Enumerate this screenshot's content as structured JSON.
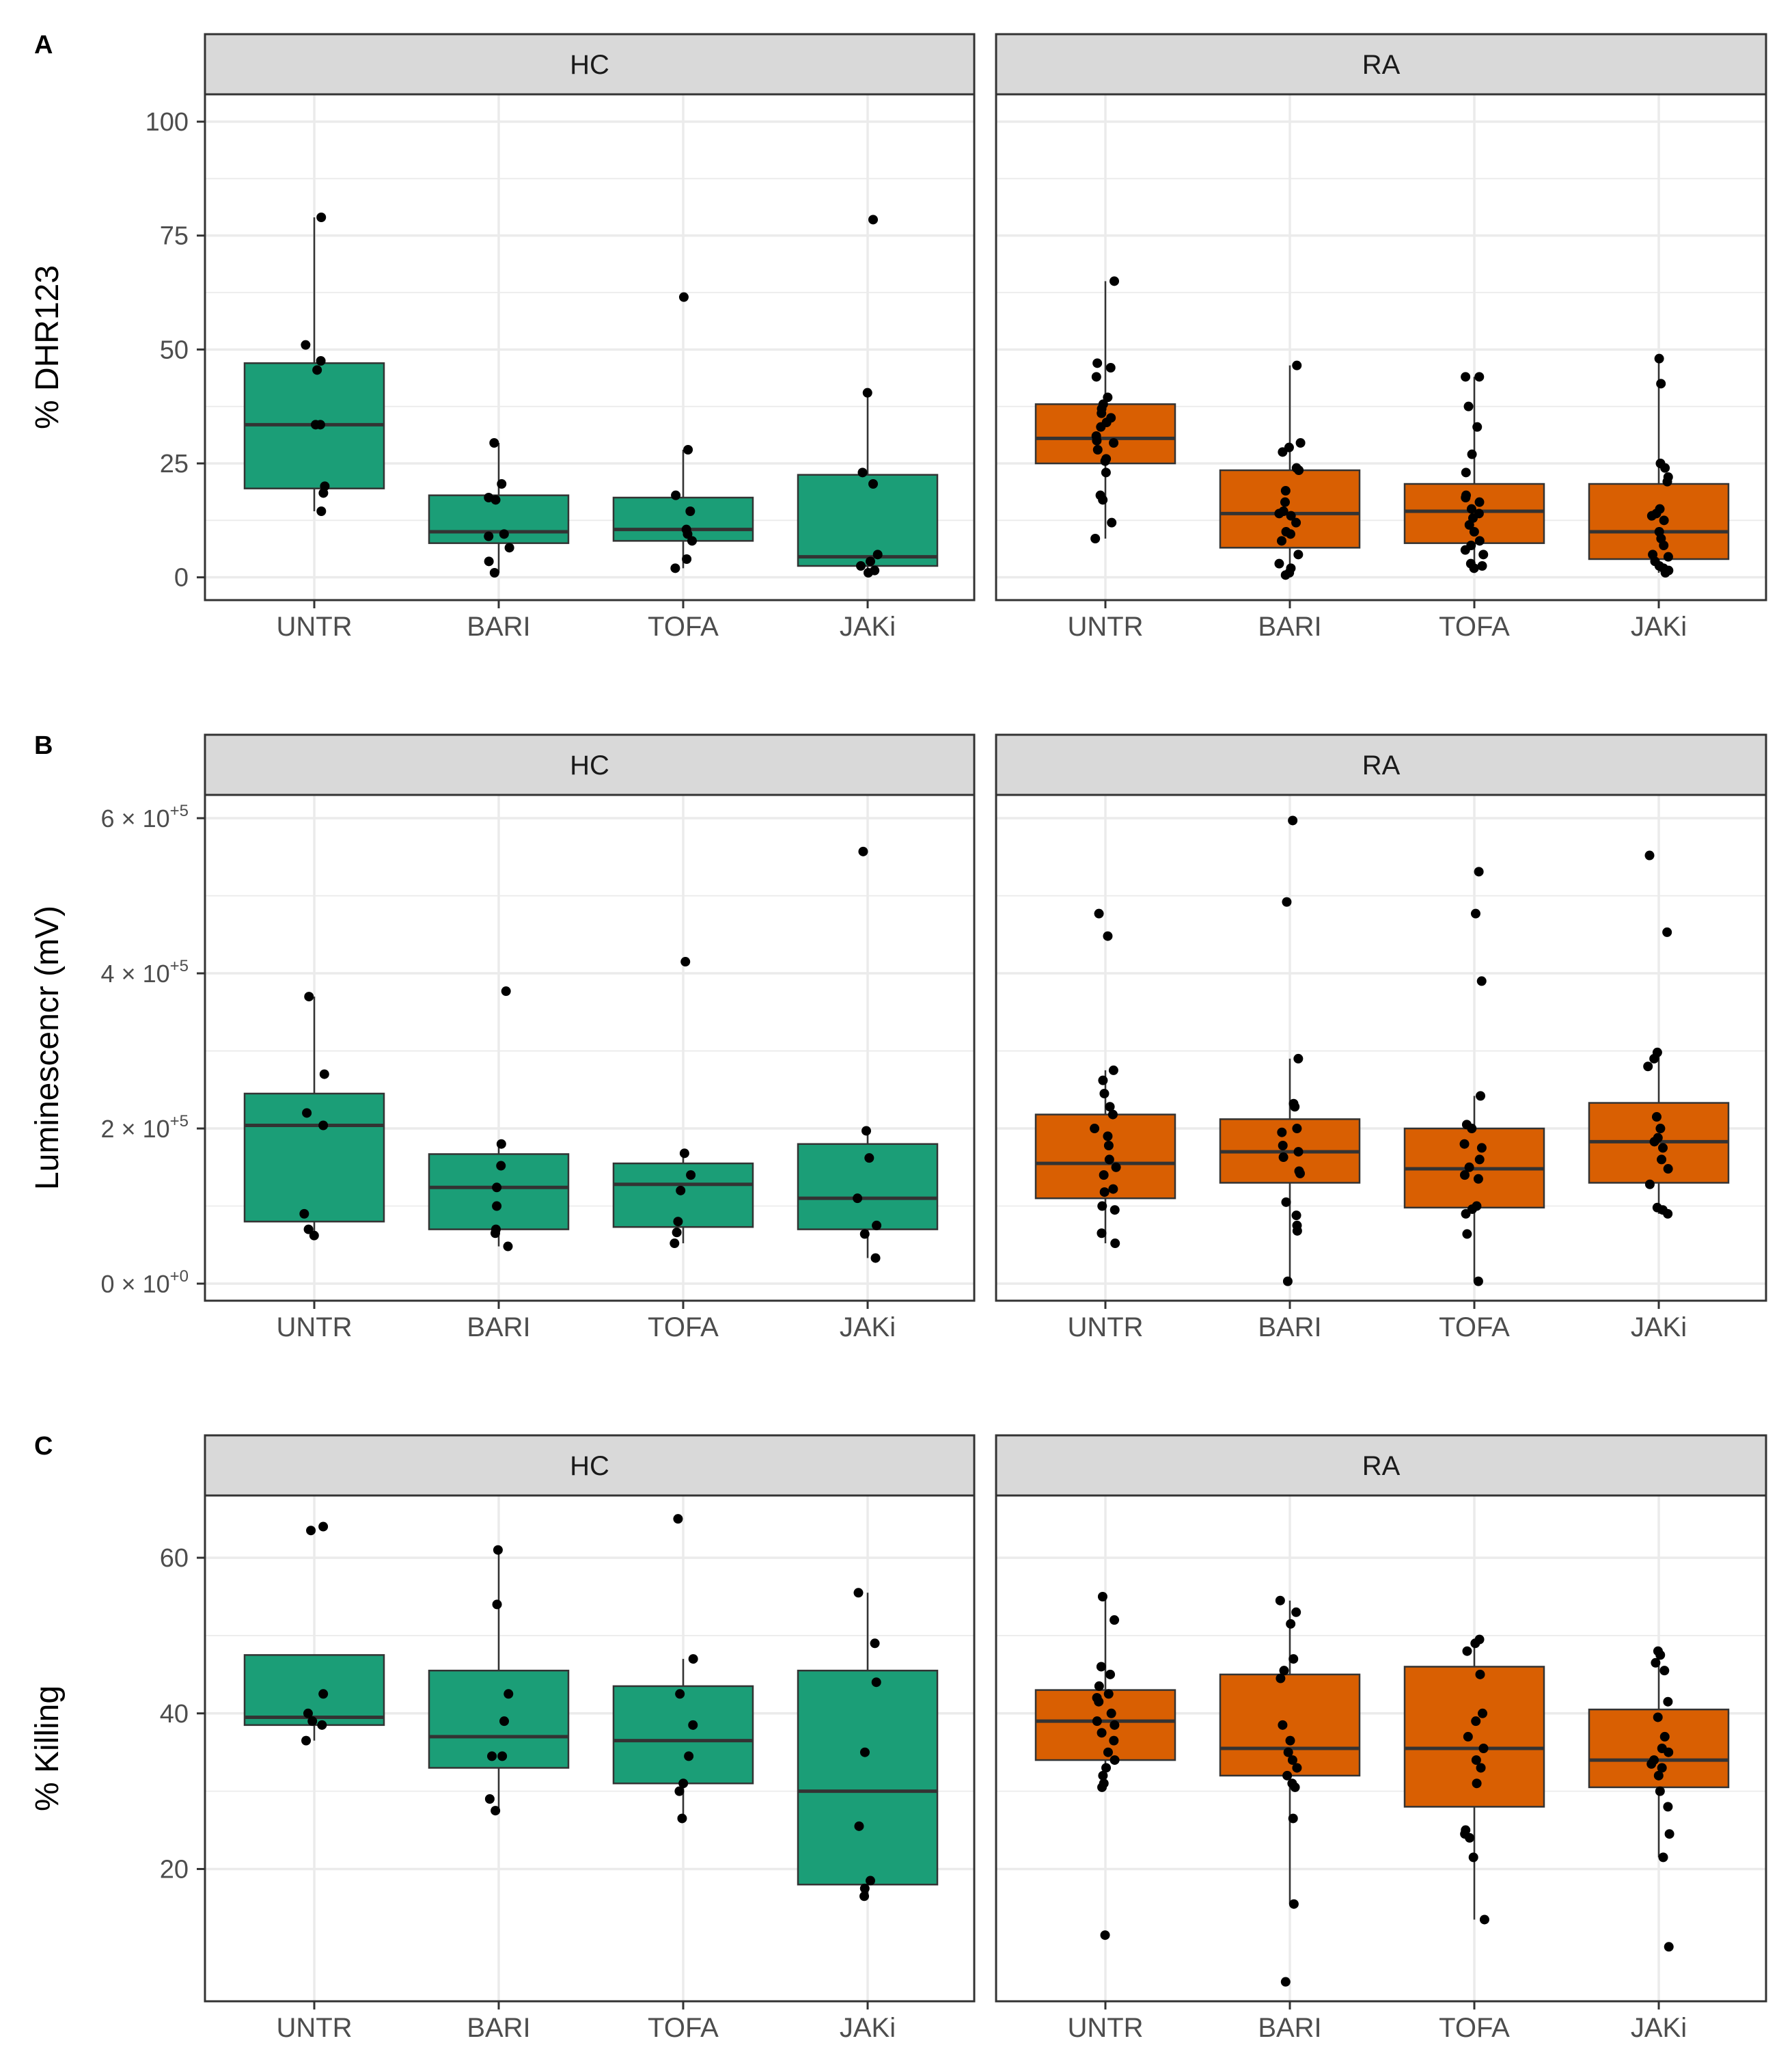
{
  "colors": {
    "hc_fill": "#1b9e77",
    "ra_fill": "#d95f02",
    "strip_bg": "#d9d9d9",
    "grid": "#ebebeb",
    "point": "#000000",
    "median": "#333333"
  },
  "chart_data": [
    {
      "type": "box",
      "panel_label": "A",
      "ylabel": "% DHR123",
      "ylim": [
        -5,
        106
      ],
      "yticks": [
        0,
        25,
        50,
        75,
        100
      ],
      "ytick_labels": [
        "0",
        "25",
        "50",
        "75",
        "100"
      ],
      "categories": [
        "UNTR",
        "BARI",
        "TOFA",
        "JAKi"
      ],
      "facets": [
        {
          "name": "HC",
          "fill_key": "hc_fill",
          "boxes": [
            {
              "q1": 19.5,
              "median": 33.5,
              "q3": 47.0,
              "wlo": 14.5,
              "whi": 79.0,
              "points": [
                79,
                51,
                47.5,
                45.5,
                33.5,
                33.5,
                20.0,
                18.5,
                14.5
              ]
            },
            {
              "q1": 7.5,
              "median": 10.0,
              "q3": 18.0,
              "wlo": 1.0,
              "whi": 29.5,
              "points": [
                29.5,
                20.5,
                17.5,
                17.0,
                9.5,
                9.0,
                6.5,
                3.5,
                1.0
              ]
            },
            {
              "q1": 8.0,
              "median": 10.5,
              "q3": 17.5,
              "wlo": 2.0,
              "whi": 28.0,
              "points": [
                61.5,
                28.0,
                18.0,
                14.5,
                10.5,
                9.5,
                8.0,
                4.0,
                2.0
              ]
            },
            {
              "q1": 2.5,
              "median": 4.5,
              "q3": 22.5,
              "wlo": 1.0,
              "whi": 40.5,
              "points": [
                78.5,
                40.5,
                23.0,
                20.5,
                5.0,
                3.5,
                2.5,
                1.5,
                1.0
              ]
            }
          ]
        },
        {
          "name": "RA",
          "fill_key": "ra_fill",
          "boxes": [
            {
              "q1": 25.0,
              "median": 30.5,
              "q3": 38.0,
              "wlo": 8.5,
              "whi": 65.0,
              "points": [
                65,
                47,
                46,
                44,
                39.5,
                38,
                37,
                36,
                35,
                34,
                33,
                31,
                30,
                29.5,
                28,
                26,
                25.5,
                23,
                18,
                17,
                12,
                8.5
              ]
            },
            {
              "q1": 6.5,
              "median": 14.0,
              "q3": 23.5,
              "wlo": 0.5,
              "whi": 46.5,
              "points": [
                46.5,
                29.5,
                28.5,
                27.5,
                24,
                23.5,
                19,
                16.5,
                14.5,
                14,
                13.5,
                12,
                10,
                9.5,
                8,
                5,
                3,
                2,
                1,
                0.5
              ]
            },
            {
              "q1": 7.5,
              "median": 14.5,
              "q3": 20.5,
              "wlo": 2.0,
              "whi": 44.0,
              "points": [
                44,
                44,
                37.5,
                33,
                27,
                23,
                18,
                17.5,
                16.5,
                15,
                14,
                13,
                11.5,
                10,
                8,
                7,
                6,
                5,
                3,
                2.5,
                2
              ]
            },
            {
              "q1": 4.0,
              "median": 10.0,
              "q3": 20.5,
              "wlo": 1.0,
              "whi": 48.0,
              "points": [
                48,
                42.5,
                25,
                24,
                22,
                21,
                15,
                14,
                13.5,
                12.5,
                10,
                8.5,
                7,
                5,
                4.5,
                3.5,
                2.5,
                2,
                1.5,
                1
              ]
            }
          ]
        }
      ]
    },
    {
      "type": "box",
      "panel_label": "B",
      "ylabel": "Luminescencr (mV)",
      "ylim": [
        -22000,
        630000
      ],
      "yticks": [
        0,
        200000,
        400000,
        600000
      ],
      "ytick_labels": [
        {
          "mant": "0",
          "exp": "+0"
        },
        {
          "mant": "2",
          "exp": "+5"
        },
        {
          "mant": "4",
          "exp": "+5"
        },
        {
          "mant": "6",
          "exp": "+5"
        }
      ],
      "ytick_joiner": " × 10",
      "categories": [
        "UNTR",
        "BARI",
        "TOFA",
        "JAKi"
      ],
      "facets": [
        {
          "name": "HC",
          "fill_key": "hc_fill",
          "boxes": [
            {
              "q1": 80000,
              "median": 204000,
              "q3": 245000,
              "wlo": 62000,
              "whi": 370000,
              "points": [
                370000,
                270000,
                220000,
                204000,
                90000,
                70000,
                62000
              ]
            },
            {
              "q1": 70000,
              "median": 124000,
              "q3": 167000,
              "wlo": 48000,
              "whi": 180000,
              "points": [
                377000,
                180000,
                152000,
                124000,
                100000,
                70000,
                65000,
                48000
              ]
            },
            {
              "q1": 73000,
              "median": 128000,
              "q3": 155000,
              "wlo": 52000,
              "whi": 168000,
              "points": [
                415000,
                168000,
                140000,
                120000,
                80000,
                66000,
                52000
              ]
            },
            {
              "q1": 70000,
              "median": 110000,
              "q3": 180000,
              "wlo": 33000,
              "whi": 197000,
              "points": [
                557000,
                197000,
                162000,
                110000,
                75000,
                64000,
                33000
              ]
            }
          ]
        },
        {
          "name": "RA",
          "fill_key": "ra_fill",
          "boxes": [
            {
              "q1": 110000,
              "median": 155000,
              "q3": 218000,
              "wlo": 52000,
              "whi": 275000,
              "points": [
                477000,
                448000,
                275000,
                262000,
                245000,
                228000,
                218000,
                200000,
                190000,
                178000,
                160000,
                150000,
                140000,
                122000,
                118000,
                100000,
                95000,
                65000,
                52000
              ]
            },
            {
              "q1": 130000,
              "median": 170000,
              "q3": 212000,
              "wlo": 3000,
              "whi": 290000,
              "points": [
                597000,
                492000,
                290000,
                232000,
                228000,
                200000,
                195000,
                178000,
                170000,
                163000,
                145000,
                142000,
                105000,
                88000,
                75000,
                68000,
                3000
              ]
            },
            {
              "q1": 98000,
              "median": 148000,
              "q3": 200000,
              "wlo": 3000,
              "whi": 242000,
              "points": [
                531000,
                477000,
                390000,
                242000,
                205000,
                200000,
                180000,
                175000,
                160000,
                150000,
                140000,
                135000,
                100000,
                96000,
                90000,
                64000,
                3000
              ]
            },
            {
              "q1": 130000,
              "median": 183000,
              "q3": 233000,
              "wlo": 90000,
              "whi": 298000,
              "points": [
                552000,
                453000,
                298000,
                290000,
                280000,
                215000,
                200000,
                188000,
                183000,
                175000,
                160000,
                148000,
                128000,
                98000,
                95000,
                90000
              ]
            }
          ]
        }
      ]
    },
    {
      "type": "box",
      "panel_label": "C",
      "ylabel": "% Killing",
      "ylim": [
        3,
        68
      ],
      "yticks": [
        20,
        40,
        60
      ],
      "ytick_labels": [
        "20",
        "40",
        "60"
      ],
      "categories": [
        "UNTR",
        "BARI",
        "TOFA",
        "JAKi"
      ],
      "facets": [
        {
          "name": "HC",
          "fill_key": "hc_fill",
          "boxes": [
            {
              "q1": 38.5,
              "median": 39.5,
              "q3": 47.5,
              "wlo": 36.5,
              "whi": 47.5,
              "points": [
                64,
                63.5,
                42.5,
                40,
                39,
                38.5,
                36.5
              ]
            },
            {
              "q1": 33.0,
              "median": 37.0,
              "q3": 45.5,
              "wlo": 27.5,
              "whi": 61.0,
              "points": [
                61,
                54,
                42.5,
                39,
                34.5,
                34.5,
                29,
                27.5
              ]
            },
            {
              "q1": 31.0,
              "median": 36.5,
              "q3": 43.5,
              "wlo": 26.5,
              "whi": 47.0,
              "points": [
                65,
                47,
                42.5,
                38.5,
                34.5,
                31,
                30,
                26.5
              ]
            },
            {
              "q1": 18.0,
              "median": 30.0,
              "q3": 45.5,
              "wlo": 16.5,
              "whi": 55.5,
              "points": [
                55.5,
                49,
                44,
                35,
                25.5,
                18.5,
                17.5,
                16.5
              ]
            }
          ]
        },
        {
          "name": "RA",
          "fill_key": "ra_fill",
          "boxes": [
            {
              "q1": 34.0,
              "median": 39.0,
              "q3": 43.0,
              "wlo": 30.5,
              "whi": 55.0,
              "points": [
                55,
                52,
                46,
                45,
                43.5,
                42.5,
                42,
                41.5,
                40,
                39,
                38.5,
                37.5,
                36.5,
                35,
                34,
                33,
                32,
                31,
                30.5,
                11.5
              ]
            },
            {
              "q1": 32.0,
              "median": 35.5,
              "q3": 45.0,
              "wlo": 15.5,
              "whi": 54.5,
              "points": [
                54.5,
                53,
                51.5,
                47,
                45.5,
                44.5,
                38.5,
                36.5,
                35,
                34,
                33,
                32,
                31,
                30.5,
                26.5,
                15.5,
                5.5
              ]
            },
            {
              "q1": 28.0,
              "median": 35.5,
              "q3": 46.0,
              "wlo": 13.5,
              "whi": 49.5,
              "points": [
                49.5,
                49,
                48,
                45,
                40,
                39,
                37,
                35.5,
                34,
                33,
                31,
                25,
                24.5,
                24,
                21.5,
                13.5
              ]
            },
            {
              "q1": 30.5,
              "median": 34.0,
              "q3": 40.5,
              "wlo": 21.5,
              "whi": 48.0,
              "points": [
                48,
                47.5,
                46.5,
                45.5,
                41.5,
                39.5,
                37,
                35.5,
                35,
                34,
                33.5,
                33,
                32,
                30,
                28,
                24.5,
                21.5,
                10
              ]
            }
          ]
        }
      ]
    }
  ]
}
